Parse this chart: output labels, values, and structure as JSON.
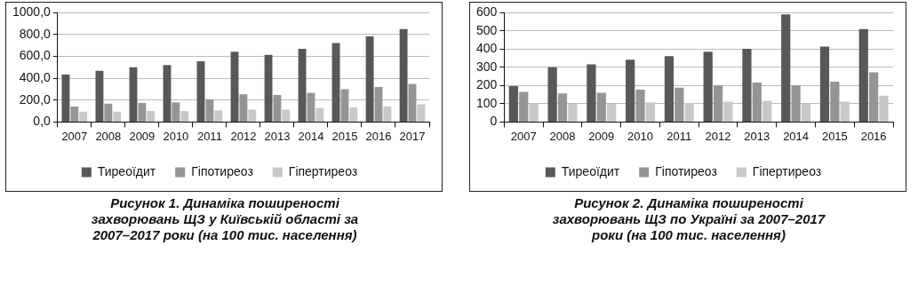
{
  "chart_data": [
    {
      "type": "bar",
      "title": "Рисунок 1.  Динаміка поширеності захворювань ЩЗ у Київській області за 2007–2017 роки (на 100 тис. населення)",
      "categories": [
        "2007",
        "2008",
        "2009",
        "2010",
        "2011",
        "2012",
        "2013",
        "2014",
        "2015",
        "2016",
        "2017"
      ],
      "series": [
        {
          "name": "Тиреоїдит",
          "color": "#58585a",
          "values": [
            435,
            469,
            502,
            522,
            556,
            643,
            616,
            670,
            723,
            783,
            850
          ]
        },
        {
          "name": "Гіпотиреоз",
          "color": "#949597",
          "values": [
            141,
            167,
            174,
            181,
            208,
            254,
            248,
            268,
            301,
            321,
            348
          ]
        },
        {
          "name": "Гіпертиреоз",
          "color": "#c8c8ca",
          "values": [
            94,
            94,
            100,
            100,
            107,
            114,
            114,
            127,
            134,
            141,
            161
          ]
        }
      ],
      "ylim": [
        0,
        1000
      ],
      "yticks": [
        {
          "value": 0,
          "label": "0,0"
        },
        {
          "value": 200,
          "label": "200,0"
        },
        {
          "value": 400,
          "label": "400,0"
        },
        {
          "value": 600,
          "label": "600,0"
        },
        {
          "value": 800,
          "label": "800,0"
        },
        {
          "value": 1000,
          "label": "1000,0"
        }
      ],
      "grid": "y",
      "legend": "bottom"
    },
    {
      "type": "bar",
      "title": "Рисунок 2.  Динаміка поширеності захворювань ЩЗ по Україні за 2007–2017 роки (на 100 тис. населення)",
      "categories": [
        "2007",
        "2008",
        "2009",
        "2010",
        "2011",
        "2012",
        "2013",
        "2014",
        "2015",
        "2016"
      ],
      "series": [
        {
          "name": "Тиреоїдит",
          "color": "#58585a",
          "values": [
            197,
            301,
            317,
            342,
            362,
            386,
            402,
            591,
            414,
            510
          ]
        },
        {
          "name": "Гіпотиреоз",
          "color": "#949597",
          "values": [
            165,
            157,
            161,
            177,
            189,
            201,
            217,
            201,
            221,
            273
          ]
        },
        {
          "name": "Гіпертиреоз",
          "color": "#c8c8ca",
          "values": [
            100,
            100,
            100,
            108,
            104,
            112,
            117,
            100,
            112,
            145
          ]
        }
      ],
      "ylim": [
        0,
        600
      ],
      "yticks": [
        0,
        100,
        200,
        300,
        400,
        500,
        600
      ],
      "grid": "y",
      "legend": "bottom"
    }
  ]
}
